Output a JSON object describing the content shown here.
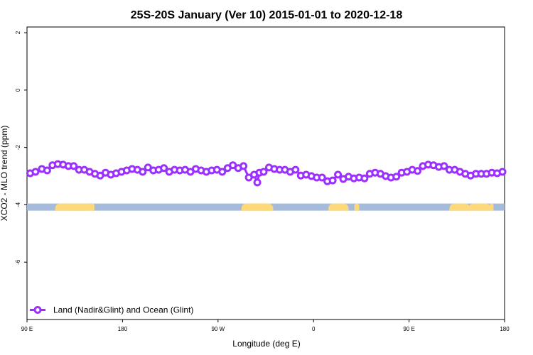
{
  "chart_data": {
    "type": "line",
    "title": "25S-20S January (Ver 10)   2015-01-01 to 2020-12-18",
    "xlabel": "Longitude (deg E)",
    "ylabel": "XCO2 - MLO trend (ppm)",
    "x_ticks": [
      {
        "value": 90,
        "label": "90 E"
      },
      {
        "value": 180,
        "label": "180"
      },
      {
        "value": 270,
        "label": "90 W"
      },
      {
        "value": 360,
        "label": "0"
      },
      {
        "value": 450,
        "label": "90 E"
      },
      {
        "value": 540,
        "label": "180"
      }
    ],
    "y_ticks": [
      {
        "value": 2,
        "label": "2"
      },
      {
        "value": 0,
        "label": "0"
      },
      {
        "value": -2,
        "label": "-2"
      },
      {
        "value": -4,
        "label": "-4"
      },
      {
        "value": -6,
        "label": "-6"
      }
    ],
    "xlim": [
      90,
      540
    ],
    "ylim": [
      -8,
      2.2
    ],
    "grid": false,
    "legend_position": "bottom-left",
    "land_ocean_bar": {
      "y_center": -4.08,
      "ocean_color": "#a6bbdc",
      "land_color": "#fdd97a",
      "land_segments": [
        [
          116.5,
          153
        ],
        [
          132,
          143.5
        ],
        [
          150,
          153.5
        ],
        [
          292,
          317
        ],
        [
          294.5,
          322
        ],
        [
          307,
          320.5
        ],
        [
          374,
          393
        ],
        [
          398.5,
          403
        ],
        [
          488,
          507.5
        ],
        [
          506,
          527
        ],
        [
          526,
          529.5
        ]
      ]
    },
    "series": [
      {
        "name": "Land (Nadir&Glint) and Ocean (Glint)",
        "color": "#9b30ff",
        "x": [
          93,
          98,
          104,
          109,
          114,
          119,
          124,
          129,
          134,
          139,
          144,
          149,
          154,
          159,
          164,
          169,
          174,
          179,
          184,
          189,
          194,
          199,
          204,
          209,
          214,
          219,
          224,
          229,
          234,
          239,
          244,
          249,
          254,
          259,
          264,
          269,
          274,
          279,
          284,
          289,
          294,
          299,
          304,
          307,
          309,
          313,
          318,
          323,
          328,
          333,
          338,
          343,
          348,
          353,
          358,
          363,
          368,
          373,
          378,
          383,
          388,
          393,
          398,
          403,
          408,
          413,
          418,
          423,
          428,
          433,
          438,
          443,
          448,
          453,
          458,
          463,
          468,
          473,
          478,
          483,
          488,
          493,
          498,
          503,
          508,
          513,
          518,
          523,
          528,
          533,
          538
        ],
        "y": [
          -2.9,
          -2.85,
          -2.75,
          -2.8,
          -2.62,
          -2.58,
          -2.6,
          -2.65,
          -2.65,
          -2.78,
          -2.78,
          -2.85,
          -2.92,
          -2.98,
          -2.88,
          -2.95,
          -2.9,
          -2.85,
          -2.8,
          -2.75,
          -2.78,
          -2.85,
          -2.7,
          -2.8,
          -2.78,
          -2.72,
          -2.85,
          -2.78,
          -2.8,
          -2.78,
          -2.85,
          -2.75,
          -2.8,
          -2.85,
          -2.8,
          -2.78,
          -2.85,
          -2.72,
          -2.62,
          -2.72,
          -2.65,
          -3.05,
          -2.95,
          -3.22,
          -2.88,
          -2.85,
          -2.7,
          -2.75,
          -2.78,
          -2.78,
          -2.85,
          -2.78,
          -2.98,
          -2.95,
          -3.0,
          -3.05,
          -3.05,
          -3.18,
          -3.15,
          -2.95,
          -3.1,
          -3.02,
          -3.08,
          -3.05,
          -3.08,
          -2.92,
          -2.88,
          -2.92,
          -3.0,
          -3.05,
          -3.02,
          -2.88,
          -2.85,
          -2.78,
          -2.82,
          -2.65,
          -2.6,
          -2.62,
          -2.68,
          -2.65,
          -2.78,
          -2.78,
          -2.85,
          -2.92,
          -2.98,
          -2.92,
          -2.92,
          -2.92,
          -2.88,
          -2.9,
          -2.85
        ]
      }
    ]
  }
}
